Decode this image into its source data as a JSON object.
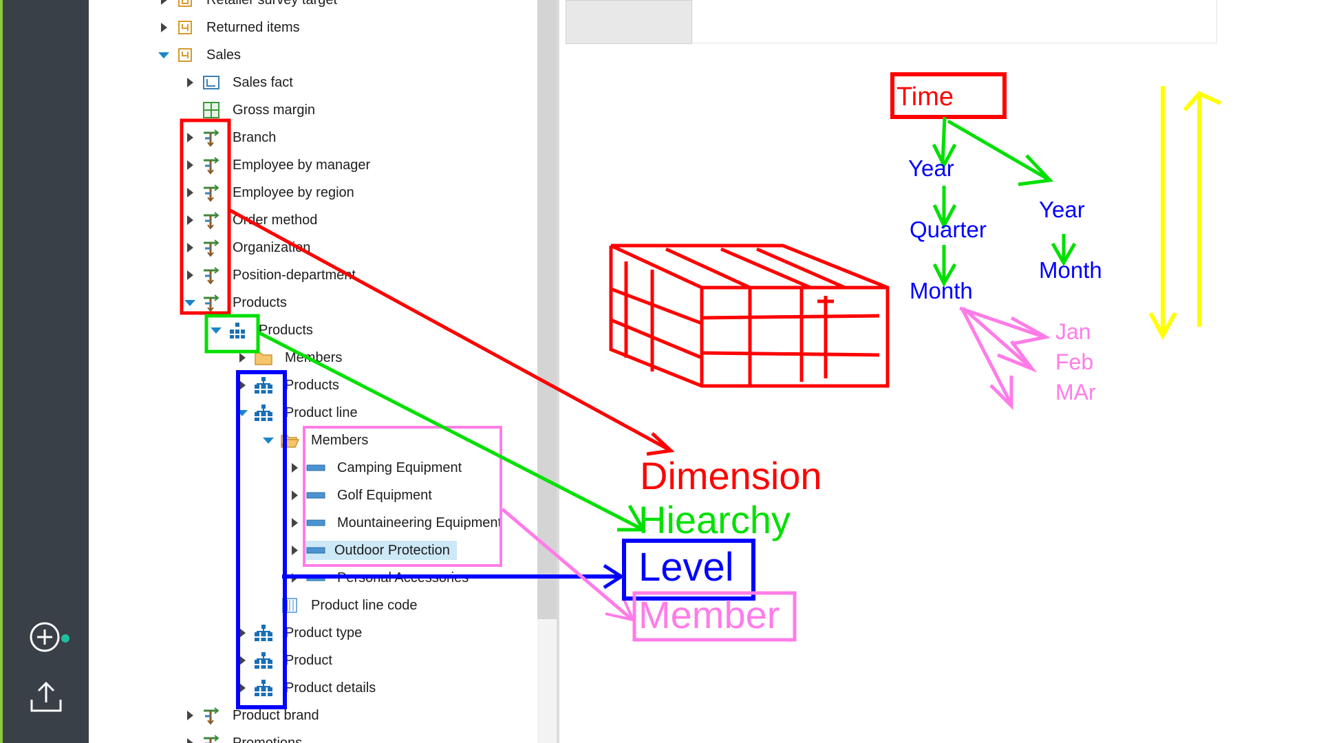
{
  "rail": {
    "add_icon": "plus-circle-icon",
    "upload_icon": "upload-icon"
  },
  "tree": {
    "retailer_survey_target": "Retailer survey target",
    "returned_items": "Returned items",
    "sales": "Sales",
    "sales_fact": "Sales fact",
    "gross_margin": "Gross margin",
    "branch": "Branch",
    "employee_by_manager": "Employee by manager",
    "employee_by_region": "Employee by region",
    "order_method": "Order method",
    "organization": "Organization",
    "position_department": "Position-department",
    "products_dimension": "Products",
    "products_hierarchy": "Products",
    "members": "Members",
    "products_level": "Products",
    "product_line": "Product line",
    "product_line_members": "Members",
    "camping_equipment": "Camping Equipment",
    "golf_equipment": "Golf Equipment",
    "mountaineering_equipment": "Mountaineering Equipment",
    "outdoor_protection": "Outdoor Protection",
    "personal_accessories": "Personal Accessories",
    "product_line_code": "Product line code",
    "product_type": "Product type",
    "product": "Product",
    "product_details": "Product details",
    "product_brand": "Product brand",
    "promotions": "Promotions"
  },
  "annotations": {
    "time": "Time",
    "year_left": "Year",
    "year_right": "Year",
    "quarter": "Quarter",
    "month_left": "Month",
    "month_right": "Month",
    "jan": "Jan",
    "feb": "Feb",
    "mar": "MAr",
    "dimension": "Dimension",
    "hierarchy": "Hiearchy",
    "level": "Level",
    "member": "Member"
  },
  "colors": {
    "red": "#ff0000",
    "green": "#00e000",
    "blue": "#0000ff",
    "pink": "#ff7ce8",
    "yellow": "#ffff00",
    "rail": "#3a4047",
    "accent": "#1a86c9"
  }
}
